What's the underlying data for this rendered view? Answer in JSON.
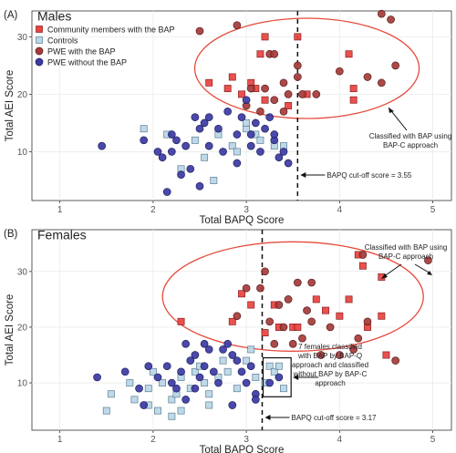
{
  "chart_data": [
    {
      "type": "scatter",
      "panel_label": "(A)",
      "title": "Males",
      "xlabel": "Total BAPQ Score",
      "ylabel": "Total AEI Score",
      "xlim": [
        0.7,
        5.2
      ],
      "ylim": [
        1.5,
        34.5
      ],
      "xticks": [
        1,
        2,
        3,
        4,
        5
      ],
      "yticks": [
        10,
        20,
        30
      ],
      "grid": true,
      "legend_position": "top-left",
      "legend": [
        {
          "label": "Community members with the BAP",
          "marker": "square",
          "color": "#e8423f"
        },
        {
          "label": "Controls",
          "marker": "square",
          "color": "#b9d6e6"
        },
        {
          "label": "PWE with the BAP",
          "marker": "circle",
          "color": "#a53a3a"
        },
        {
          "label": "PWE without the BAP",
          "marker": "circle",
          "color": "#3b3aa4"
        }
      ],
      "cutoff": {
        "x": 3.55,
        "label": "BAPQ cut-off score = 3.55"
      },
      "ellipse_annotation": "Classified with BAP using BAP-C approach",
      "series": [
        {
          "name": "Community members with the BAP",
          "points": [
            [
              3.2,
              30
            ],
            [
              3.15,
              27
            ],
            [
              3.05,
              22
            ],
            [
              3.1,
              21
            ],
            [
              2.85,
              23
            ],
            [
              2.95,
              20
            ],
            [
              3.2,
              19
            ],
            [
              2.6,
              22
            ],
            [
              2.8,
              21
            ],
            [
              3.55,
              30
            ],
            [
              4.1,
              27
            ],
            [
              4.15,
              21
            ],
            [
              4.15,
              19
            ],
            [
              3.45,
              18
            ],
            [
              3.65,
              20
            ]
          ]
        },
        {
          "name": "Controls",
          "points": [
            [
              1.9,
              14
            ],
            [
              2.15,
              13
            ],
            [
              2.45,
              12
            ],
            [
              2.7,
              13
            ],
            [
              2.85,
              11
            ],
            [
              3.0,
              14
            ],
            [
              3.1,
              13
            ],
            [
              3.3,
              11
            ],
            [
              3.4,
              11
            ],
            [
              2.3,
              7
            ],
            [
              2.55,
              9
            ],
            [
              2.65,
              5
            ],
            [
              2.9,
              10
            ],
            [
              3.0,
              15
            ],
            [
              3.15,
              12
            ]
          ]
        },
        {
          "name": "PWE with the BAP",
          "points": [
            [
              2.5,
              31
            ],
            [
              2.9,
              32
            ],
            [
              3.25,
              27
            ],
            [
              3.3,
              27
            ],
            [
              3.55,
              25
            ],
            [
              4.45,
              34
            ],
            [
              4.55,
              33
            ],
            [
              3.05,
              21
            ],
            [
              3.2,
              21
            ],
            [
              3.3,
              19
            ],
            [
              3.4,
              22
            ],
            [
              3.55,
              23
            ],
            [
              3.6,
              20
            ],
            [
              3.75,
              20
            ],
            [
              3.0,
              18
            ],
            [
              3.4,
              17
            ],
            [
              4.3,
              23
            ],
            [
              4.45,
              22
            ],
            [
              4.6,
              25
            ],
            [
              4.0,
              24
            ],
            [
              3.45,
              20
            ],
            [
              3.15,
              17
            ]
          ]
        },
        {
          "name": "PWE without the BAP",
          "points": [
            [
              1.45,
              11
            ],
            [
              1.9,
              12
            ],
            [
              2.05,
              10
            ],
            [
              2.1,
              9
            ],
            [
              2.2,
              10
            ],
            [
              2.25,
              12
            ],
            [
              2.35,
              11
            ],
            [
              2.5,
              14
            ],
            [
              2.55,
              15
            ],
            [
              2.6,
              16
            ],
            [
              2.7,
              14
            ],
            [
              2.8,
              17
            ],
            [
              2.95,
              16
            ],
            [
              3.0,
              19
            ],
            [
              3.05,
              13
            ],
            [
              3.1,
              15
            ],
            [
              3.2,
              14
            ],
            [
              3.3,
              12
            ],
            [
              3.35,
              9
            ],
            [
              2.15,
              3
            ],
            [
              2.3,
              6
            ],
            [
              2.4,
              7
            ],
            [
              2.5,
              4
            ],
            [
              2.6,
              11
            ],
            [
              2.75,
              10
            ],
            [
              2.9,
              8
            ],
            [
              3.05,
              11
            ],
            [
              3.15,
              10
            ],
            [
              3.25,
              16
            ],
            [
              3.3,
              13
            ],
            [
              3.4,
              10
            ],
            [
              3.45,
              8
            ],
            [
              2.45,
              16
            ],
            [
              2.2,
              13
            ],
            [
              2.9,
              13
            ]
          ]
        }
      ]
    },
    {
      "type": "scatter",
      "panel_label": "(B)",
      "title": "Females",
      "xlabel": "Total BAPQ Score",
      "ylabel": "Total AEI Score",
      "xlim": [
        0.7,
        5.2
      ],
      "ylim": [
        1.5,
        37.5
      ],
      "xticks": [
        1,
        2,
        3,
        4,
        5
      ],
      "yticks": [
        10,
        20,
        30
      ],
      "grid": true,
      "cutoff": {
        "x": 3.17,
        "label": "BAPQ cut-off score = 3.17"
      },
      "ellipse_annotation": "Classified with BAP using BAP-C approach",
      "box_annotation": "7 females classified with BAP by BAP-Q approach and classified without BAP by BAP-C approach",
      "series": [
        {
          "name": "Community members with the BAP",
          "points": [
            [
              4.2,
              33
            ],
            [
              4.25,
              31
            ],
            [
              4.45,
              29
            ],
            [
              2.95,
              26
            ],
            [
              3.05,
              24
            ],
            [
              3.3,
              24
            ],
            [
              3.75,
              25
            ],
            [
              4.1,
              25
            ],
            [
              4.0,
              22
            ],
            [
              4.3,
              20
            ],
            [
              4.45,
              22
            ],
            [
              3.85,
              23
            ],
            [
              3.5,
              20
            ],
            [
              3.55,
              20
            ],
            [
              2.3,
              21
            ],
            [
              3.35,
              20
            ],
            [
              4.5,
              15
            ],
            [
              2.85,
              21
            ],
            [
              3.2,
              19
            ]
          ]
        },
        {
          "name": "Controls",
          "points": [
            [
              1.5,
              5
            ],
            [
              1.55,
              8
            ],
            [
              1.75,
              10
            ],
            [
              1.8,
              7
            ],
            [
              1.95,
              9
            ],
            [
              2.0,
              12
            ],
            [
              2.1,
              10
            ],
            [
              2.2,
              7
            ],
            [
              2.25,
              8
            ],
            [
              2.3,
              11
            ],
            [
              2.4,
              9
            ],
            [
              2.45,
              12
            ],
            [
              2.5,
              13
            ],
            [
              2.55,
              10
            ],
            [
              2.6,
              8
            ],
            [
              2.7,
              11
            ],
            [
              2.8,
              12
            ],
            [
              2.9,
              9
            ],
            [
              3.0,
              14
            ],
            [
              3.05,
              16
            ],
            [
              3.1,
              11
            ],
            [
              2.3,
              5
            ],
            [
              2.6,
              6
            ],
            [
              2.2,
              4
            ],
            [
              3.2,
              10
            ],
            [
              3.25,
              13
            ],
            [
              3.3,
              12
            ],
            [
              1.95,
              6
            ],
            [
              2.05,
              5
            ],
            [
              2.75,
              14
            ],
            [
              3.35,
              13
            ],
            [
              3.4,
              9
            ]
          ]
        },
        {
          "name": "PWE with the BAP",
          "points": [
            [
              3.2,
              30
            ],
            [
              3.55,
              28
            ],
            [
              3.7,
              28
            ],
            [
              3.0,
              27
            ],
            [
              3.15,
              27
            ],
            [
              3.35,
              24
            ],
            [
              3.45,
              25
            ],
            [
              3.25,
              21
            ],
            [
              3.4,
              20
            ],
            [
              3.6,
              18
            ],
            [
              3.7,
              21
            ],
            [
              3.9,
              20
            ],
            [
              4.0,
              15
            ],
            [
              4.2,
              18
            ],
            [
              4.6,
              14
            ],
            [
              4.95,
              32
            ],
            [
              4.25,
              33
            ],
            [
              2.9,
              22
            ],
            [
              3.5,
              17
            ],
            [
              3.8,
              15
            ],
            [
              4.15,
              16
            ],
            [
              3.3,
              17
            ],
            [
              3.65,
              23
            ],
            [
              4.3,
              21
            ]
          ]
        },
        {
          "name": "PWE without the BAP",
          "points": [
            [
              1.4,
              11
            ],
            [
              1.7,
              12
            ],
            [
              1.85,
              9
            ],
            [
              1.95,
              13
            ],
            [
              2.05,
              11
            ],
            [
              2.15,
              13
            ],
            [
              2.2,
              10
            ],
            [
              2.25,
              9
            ],
            [
              2.3,
              12
            ],
            [
              2.4,
              14
            ],
            [
              2.45,
              15
            ],
            [
              2.5,
              11
            ],
            [
              2.55,
              13
            ],
            [
              2.6,
              16
            ],
            [
              2.65,
              12
            ],
            [
              2.75,
              16
            ],
            [
              2.8,
              17
            ],
            [
              2.85,
              15
            ],
            [
              2.9,
              14
            ],
            [
              2.95,
              12
            ],
            [
              3.0,
              10
            ],
            [
              3.1,
              8
            ],
            [
              3.05,
              13
            ],
            [
              3.35,
              11
            ],
            [
              3.25,
              10
            ],
            [
              2.35,
              17
            ],
            [
              1.9,
              6
            ],
            [
              2.45,
              9
            ],
            [
              2.7,
              10
            ],
            [
              2.85,
              6
            ],
            [
              3.1,
              7
            ],
            [
              2.55,
              17
            ],
            [
              2.35,
              7
            ]
          ]
        }
      ]
    }
  ]
}
